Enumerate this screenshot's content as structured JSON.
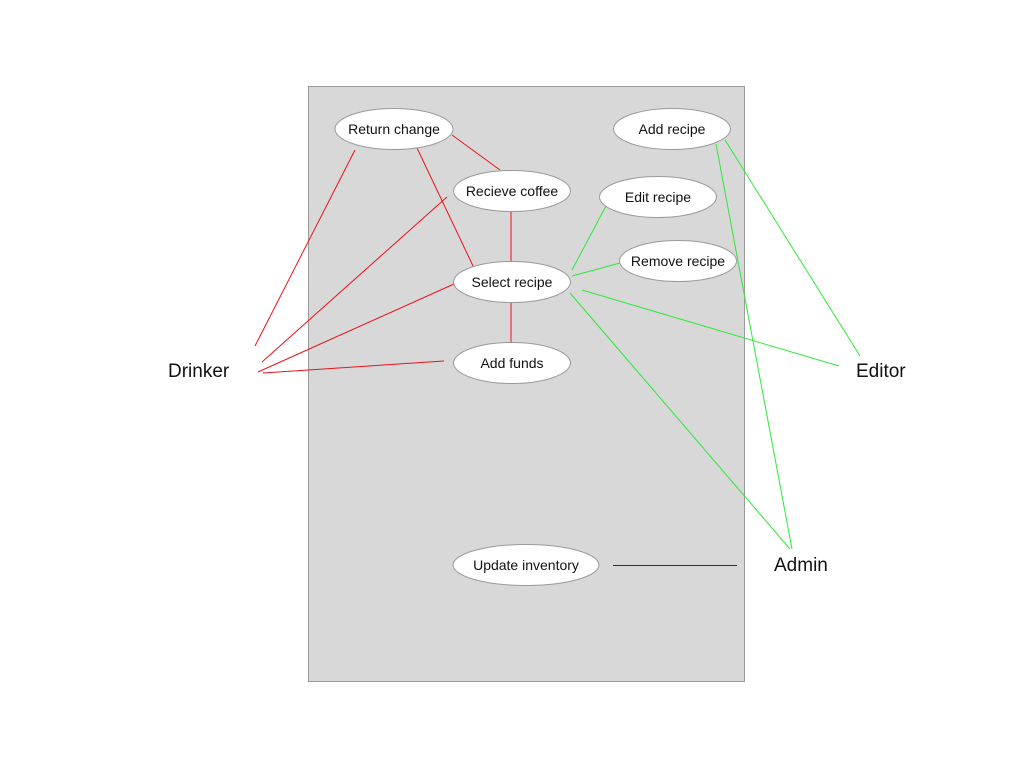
{
  "colors": {
    "boundary_fill": "#d8d8d8",
    "drinker_links": "#e8141b",
    "editor_links": "#2ee83a",
    "admin_inventory_link": "#1a1acc"
  },
  "actors": {
    "drinker": "Drinker",
    "editor": "Editor",
    "admin": "Admin"
  },
  "use_cases": {
    "return_change": "Return change",
    "recieve_coffee": "Recieve coffee",
    "select_recipe": "Select recipe",
    "add_funds": "Add funds",
    "add_recipe": "Add recipe",
    "edit_recipe": "Edit recipe",
    "remove_recipe": "Remove recipe",
    "update_inventory": "Update inventory"
  }
}
